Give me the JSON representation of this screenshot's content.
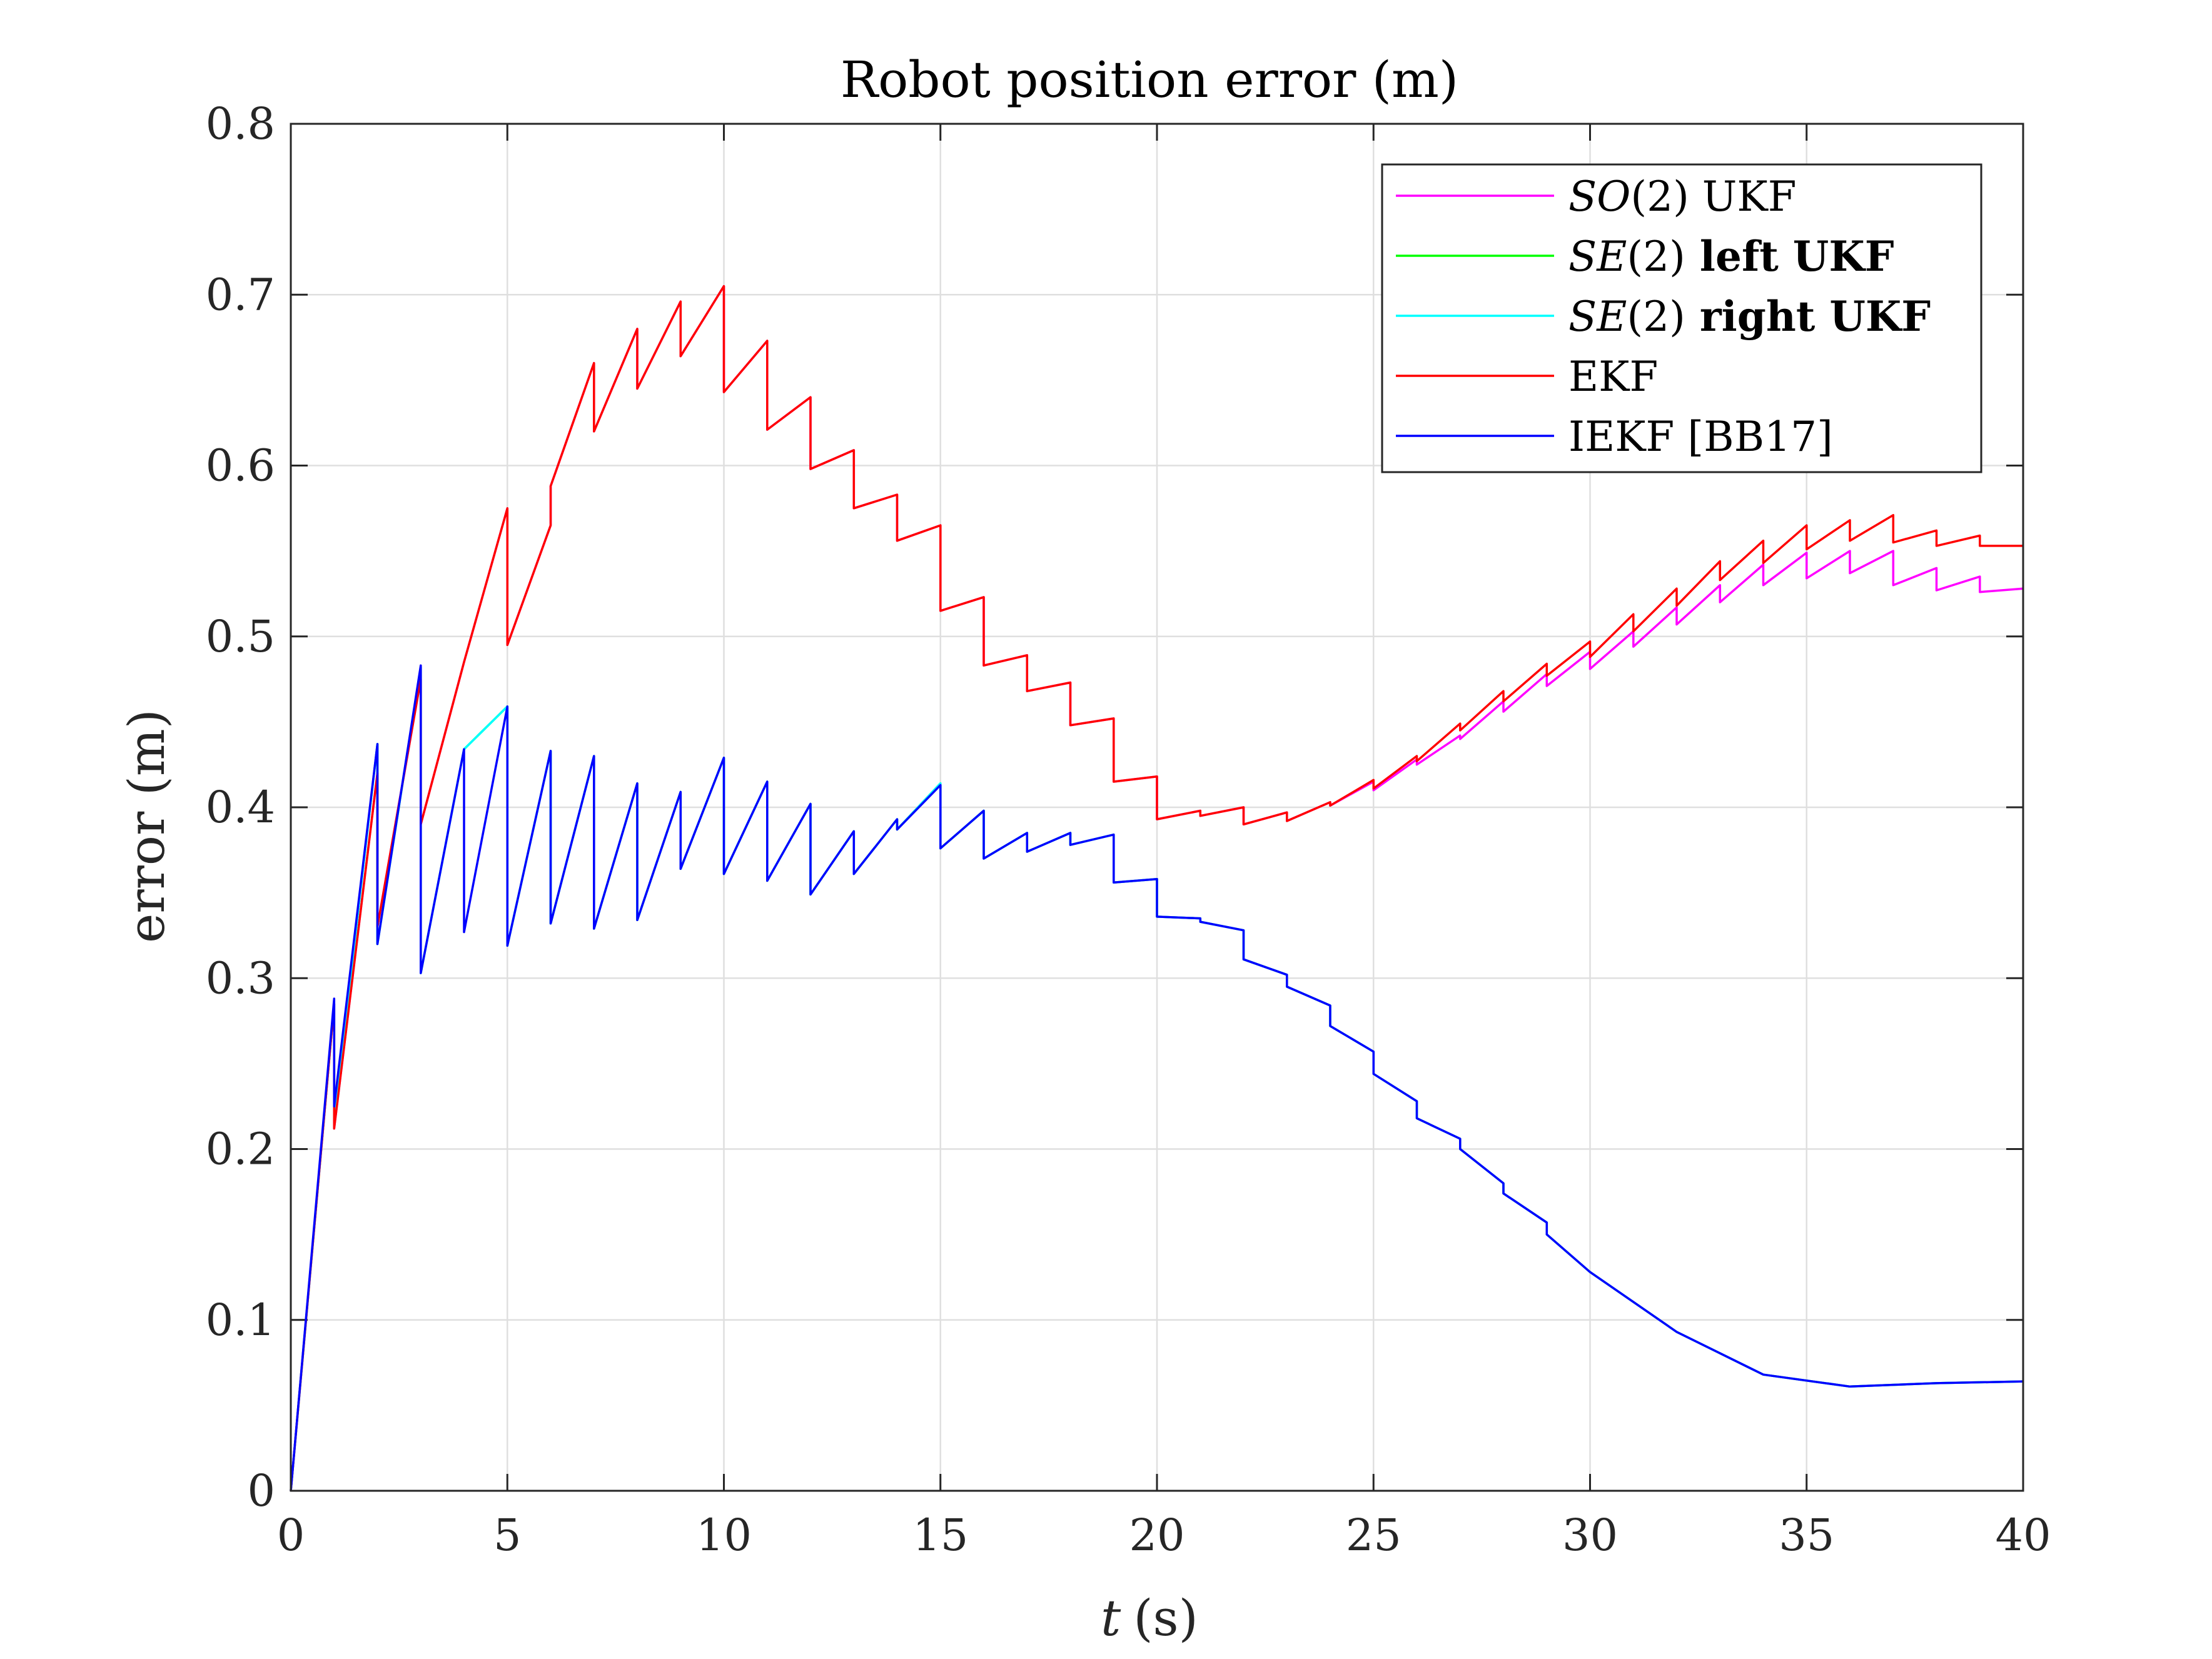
{
  "chart_data": {
    "type": "line",
    "title": "Robot position error (m)",
    "xlabel_var": "t",
    "xlabel_unit": "(s)",
    "ylabel": "error (m)",
    "xlim": [
      0,
      40
    ],
    "ylim": [
      0,
      0.8
    ],
    "xticks": [
      0,
      5,
      10,
      15,
      20,
      25,
      30,
      35,
      40
    ],
    "xtick_labels": [
      "0",
      "5",
      "10",
      "15",
      "20",
      "25",
      "30",
      "35",
      "40"
    ],
    "yticks": [
      0,
      0.1,
      0.2,
      0.3,
      0.4,
      0.5,
      0.6,
      0.7,
      0.8
    ],
    "ytick_labels": [
      "0",
      "0.1",
      "0.2",
      "0.3",
      "0.4",
      "0.5",
      "0.6",
      "0.7",
      "0.8"
    ],
    "grid": true,
    "legend_position": "top-right",
    "series": [
      {
        "key": "so2",
        "color": "#ff00ff",
        "legend": {
          "math": "SO",
          "arg": "(2)",
          "rest": " UKF",
          "bold": false
        },
        "x": [
          0,
          1,
          1,
          2,
          2,
          3,
          3,
          4,
          5,
          5,
          6,
          6,
          7,
          7,
          8,
          8,
          9,
          9,
          10,
          10,
          11,
          11,
          12,
          12,
          13,
          13,
          14,
          14,
          15,
          15,
          16,
          16,
          17,
          17,
          18,
          18,
          19,
          19,
          20,
          20,
          21,
          21,
          22,
          22,
          23,
          23,
          24,
          24,
          25,
          25,
          26,
          26,
          27,
          27,
          28,
          28,
          29,
          29,
          30,
          30,
          31,
          31,
          32,
          32,
          33,
          33,
          34,
          34,
          35,
          35,
          36,
          36,
          37,
          37,
          38,
          38,
          39,
          39,
          40
        ],
        "y": [
          0,
          0.285,
          0.212,
          0.42,
          0.33,
          0.475,
          0.39,
          0.485,
          0.575,
          0.495,
          0.565,
          0.588,
          0.66,
          0.62,
          0.68,
          0.645,
          0.696,
          0.664,
          0.705,
          0.643,
          0.673,
          0.621,
          0.64,
          0.598,
          0.609,
          0.575,
          0.583,
          0.556,
          0.565,
          0.515,
          0.523,
          0.483,
          0.489,
          0.468,
          0.473,
          0.448,
          0.452,
          0.415,
          0.418,
          0.393,
          0.398,
          0.395,
          0.4,
          0.39,
          0.397,
          0.392,
          0.403,
          0.401,
          0.415,
          0.41,
          0.428,
          0.425,
          0.442,
          0.44,
          0.462,
          0.456,
          0.478,
          0.471,
          0.491,
          0.481,
          0.503,
          0.494,
          0.517,
          0.507,
          0.53,
          0.52,
          0.542,
          0.53,
          0.549,
          0.534,
          0.55,
          0.537,
          0.55,
          0.53,
          0.54,
          0.527,
          0.535,
          0.526,
          0.528
        ]
      },
      {
        "key": "left",
        "color": "#00ff00",
        "legend": {
          "math": "SE",
          "arg": "(2)",
          "rest": " left UKF",
          "bold": true
        },
        "x": [
          0,
          1,
          1,
          2,
          2,
          3,
          3,
          4,
          5,
          5,
          6,
          6,
          7,
          7,
          8,
          8,
          9,
          9,
          10,
          10,
          11,
          11,
          12,
          12,
          13,
          13,
          14,
          14,
          15,
          15,
          16,
          16,
          17,
          17,
          18,
          18,
          19,
          19,
          20,
          20,
          21,
          21,
          22,
          22,
          23,
          23,
          24,
          24,
          25,
          25,
          26,
          26,
          27,
          27,
          28,
          28,
          29,
          29,
          30,
          32,
          34,
          36,
          38,
          40
        ],
        "y": [
          0,
          0.285,
          0.218,
          0.437,
          0.32,
          0.482,
          0.303,
          0.434,
          0.459,
          0.319,
          0.433,
          0.332,
          0.43,
          0.329,
          0.414,
          0.334,
          0.409,
          0.364,
          0.429,
          0.361,
          0.415,
          0.357,
          0.402,
          0.349,
          0.386,
          0.361,
          0.393,
          0.387,
          0.414,
          0.376,
          0.398,
          0.37,
          0.385,
          0.374,
          0.385,
          0.378,
          0.384,
          0.356,
          0.358,
          0.336,
          0.335,
          0.333,
          0.328,
          0.311,
          0.302,
          0.295,
          0.284,
          0.272,
          0.257,
          0.244,
          0.228,
          0.218,
          0.206,
          0.2,
          0.18,
          0.174,
          0.157,
          0.15,
          0.128,
          0.093,
          0.068,
          0.061,
          0.063,
          0.064
        ]
      },
      {
        "key": "right",
        "color": "#00ffff",
        "legend": {
          "math": "SE",
          "arg": "(2)",
          "rest": " right UKF",
          "bold": true
        },
        "x": [
          0,
          1,
          1,
          2,
          2,
          3,
          3,
          4,
          5,
          5,
          6,
          6,
          7,
          7,
          8,
          8,
          9,
          9,
          10,
          10,
          11,
          11,
          12,
          12,
          13,
          13,
          14,
          14,
          15,
          15,
          16,
          16,
          17,
          17,
          18,
          18,
          19,
          19,
          20,
          20,
          21,
          21,
          22,
          22,
          23,
          23,
          24,
          24,
          25,
          25,
          26,
          26,
          27,
          27,
          28,
          28,
          29,
          29,
          30,
          32,
          34,
          36,
          38,
          40
        ],
        "y": [
          0,
          0.285,
          0.218,
          0.437,
          0.32,
          0.482,
          0.303,
          0.434,
          0.459,
          0.319,
          0.433,
          0.332,
          0.43,
          0.329,
          0.414,
          0.334,
          0.409,
          0.364,
          0.429,
          0.361,
          0.415,
          0.357,
          0.402,
          0.349,
          0.386,
          0.361,
          0.393,
          0.387,
          0.414,
          0.376,
          0.398,
          0.37,
          0.385,
          0.374,
          0.385,
          0.378,
          0.384,
          0.356,
          0.358,
          0.336,
          0.335,
          0.333,
          0.328,
          0.311,
          0.302,
          0.295,
          0.284,
          0.272,
          0.257,
          0.244,
          0.228,
          0.218,
          0.206,
          0.2,
          0.18,
          0.174,
          0.157,
          0.15,
          0.128,
          0.093,
          0.068,
          0.061,
          0.063,
          0.064
        ]
      },
      {
        "key": "ekf",
        "color": "#ff0000",
        "legend": {
          "math": "",
          "arg": "",
          "rest": "EKF",
          "bold": false
        },
        "x": [
          0,
          1,
          1,
          2,
          2,
          3,
          3,
          4,
          5,
          5,
          6,
          6,
          7,
          7,
          8,
          8,
          9,
          9,
          10,
          10,
          11,
          11,
          12,
          12,
          13,
          13,
          14,
          14,
          15,
          15,
          16,
          16,
          17,
          17,
          18,
          18,
          19,
          19,
          20,
          20,
          21,
          21,
          22,
          22,
          23,
          23,
          24,
          24,
          25,
          25,
          26,
          26,
          27,
          27,
          28,
          28,
          29,
          29,
          30,
          30,
          31,
          31,
          32,
          32,
          33,
          33,
          34,
          34,
          35,
          35,
          36,
          36,
          37,
          37,
          38,
          38,
          39,
          39,
          40
        ],
        "y": [
          0,
          0.285,
          0.212,
          0.42,
          0.33,
          0.475,
          0.39,
          0.485,
          0.575,
          0.495,
          0.565,
          0.588,
          0.66,
          0.62,
          0.68,
          0.645,
          0.696,
          0.664,
          0.705,
          0.643,
          0.673,
          0.621,
          0.64,
          0.598,
          0.609,
          0.575,
          0.583,
          0.556,
          0.565,
          0.515,
          0.523,
          0.483,
          0.489,
          0.468,
          0.473,
          0.448,
          0.452,
          0.415,
          0.418,
          0.393,
          0.398,
          0.395,
          0.4,
          0.39,
          0.397,
          0.392,
          0.403,
          0.401,
          0.416,
          0.411,
          0.43,
          0.427,
          0.449,
          0.445,
          0.468,
          0.462,
          0.484,
          0.477,
          0.497,
          0.488,
          0.513,
          0.503,
          0.528,
          0.518,
          0.544,
          0.533,
          0.556,
          0.543,
          0.565,
          0.551,
          0.568,
          0.556,
          0.571,
          0.555,
          0.562,
          0.553,
          0.559,
          0.553,
          0.553
        ]
      },
      {
        "key": "iekf",
        "color": "#0000ff",
        "legend": {
          "math": "",
          "arg": "",
          "rest": "IEKF [BB17]",
          "bold": false
        },
        "x": [
          0,
          1,
          1,
          2,
          2,
          3,
          3,
          4,
          4,
          5,
          5,
          6,
          6,
          7,
          7,
          8,
          8,
          9,
          9,
          10,
          10,
          11,
          11,
          12,
          12,
          13,
          13,
          14,
          14,
          15,
          15,
          16,
          16,
          17,
          17,
          18,
          18,
          19,
          19,
          20,
          20,
          21,
          21,
          22,
          22,
          23,
          23,
          24,
          24,
          25,
          25,
          26,
          26,
          27,
          27,
          28,
          28,
          29,
          29,
          30,
          32,
          34,
          36,
          38,
          40
        ],
        "y": [
          0,
          0.288,
          0.225,
          0.437,
          0.32,
          0.483,
          0.303,
          0.434,
          0.327,
          0.459,
          0.319,
          0.433,
          0.332,
          0.43,
          0.329,
          0.414,
          0.334,
          0.409,
          0.364,
          0.429,
          0.361,
          0.415,
          0.357,
          0.402,
          0.349,
          0.386,
          0.361,
          0.393,
          0.387,
          0.413,
          0.376,
          0.398,
          0.37,
          0.385,
          0.374,
          0.385,
          0.378,
          0.384,
          0.356,
          0.358,
          0.336,
          0.335,
          0.333,
          0.328,
          0.311,
          0.302,
          0.295,
          0.284,
          0.272,
          0.257,
          0.244,
          0.228,
          0.218,
          0.206,
          0.2,
          0.18,
          0.174,
          0.157,
          0.15,
          0.128,
          0.093,
          0.068,
          0.061,
          0.063,
          0.064
        ]
      }
    ]
  }
}
